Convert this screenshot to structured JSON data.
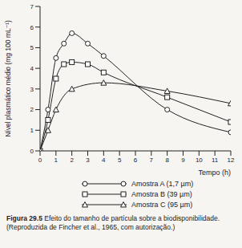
{
  "chart_data": {
    "type": "line",
    "caption": "Figura 29.5 Efeito do tamanho de partícula sobre a biodisponibilidade. (Reproduzida de Fincher et al., 1965, com autorização.)",
    "x_label": "Tempo (h)",
    "y_label": "Nível plasmático médio (mg 100 mL⁻¹)",
    "xlim": [
      0,
      12
    ],
    "xticks": [
      0,
      1,
      2,
      3,
      4,
      5,
      6,
      7,
      8,
      9,
      10,
      11,
      12
    ],
    "ylim": [
      0,
      7
    ],
    "yticks": [
      0,
      1,
      2,
      3,
      4,
      5,
      6,
      7
    ],
    "grid": false,
    "legend": "bottom",
    "series": [
      {
        "name": "Amostra A (1,7 µm)",
        "color": "#222222",
        "marker": "circle",
        "x": [
          0,
          0.5,
          1,
          1.5,
          2,
          3,
          4,
          8,
          12
        ],
        "values": [
          0,
          2.0,
          4.5,
          5.2,
          5.7,
          5.2,
          4.6,
          2.0,
          0.9
        ]
      },
      {
        "name": "Amostra B (39 µm)",
        "color": "#222222",
        "marker": "square",
        "x": [
          0,
          0.5,
          1,
          1.5,
          2,
          3,
          4,
          8,
          12
        ],
        "values": [
          0,
          1.5,
          3.5,
          4.2,
          4.3,
          4.2,
          3.8,
          2.6,
          1.4
        ]
      },
      {
        "name": "Amostra C (95 µm)",
        "color": "#222222",
        "marker": "triangle",
        "x": [
          0,
          0.5,
          1,
          2,
          4,
          8,
          12
        ],
        "values": [
          0,
          1.0,
          2.0,
          3.0,
          3.3,
          2.9,
          2.3
        ]
      }
    ]
  }
}
